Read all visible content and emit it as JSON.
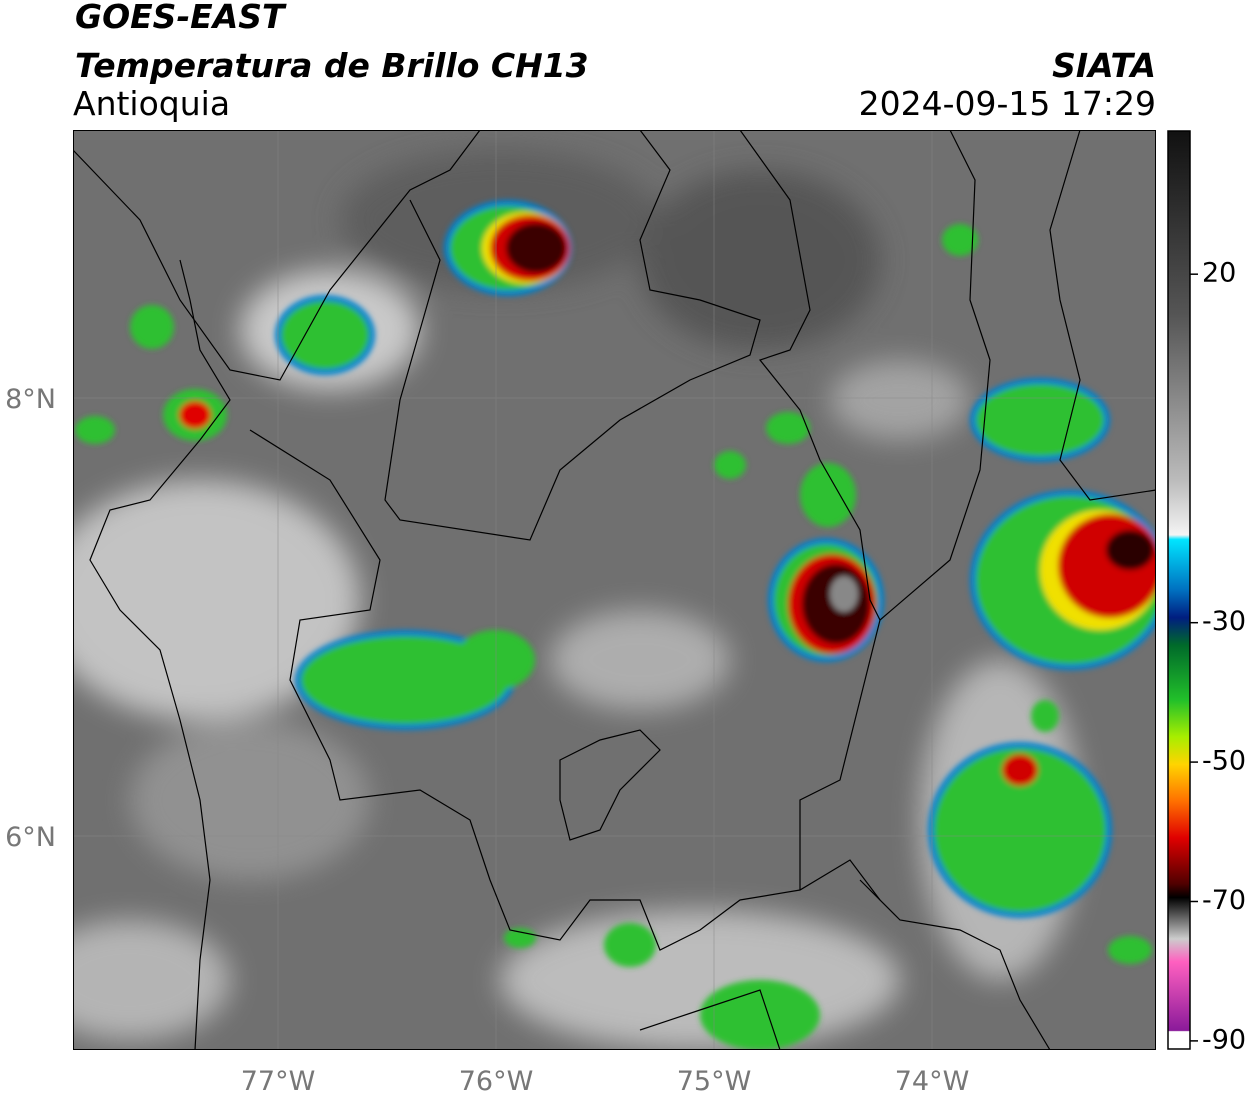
{
  "header": {
    "title": "GOES-EAST",
    "subtitle": "Temperatura de Brillo CH13",
    "region": "Antioquia",
    "source": "SIATA",
    "timestamp": "2024-09-15 17:29"
  },
  "map": {
    "lat_labels": [
      "8°N",
      "6°N"
    ],
    "lon_labels": [
      "77°W",
      "76°W",
      "75°W",
      "74°W"
    ]
  },
  "colorbar": {
    "ticks": [
      20,
      -30,
      -50,
      -70,
      -90
    ]
  }
}
